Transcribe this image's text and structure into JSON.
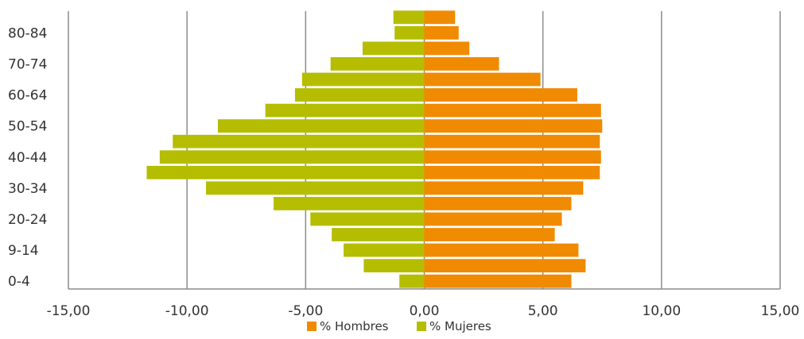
{
  "chart_data": {
    "type": "bar",
    "orientation": "horizontal",
    "categories": [
      "0-4",
      "5-8",
      "9-14",
      "15-19",
      "20-24",
      "25-29",
      "30-34",
      "35-39",
      "40-44",
      "45-49",
      "50-54",
      "55-59",
      "60-64",
      "65-69",
      "70-74",
      "75-79",
      "80-84",
      "85+"
    ],
    "visible_category_labels": [
      "0-4",
      "9-14",
      "20-24",
      "30-34",
      "40-44",
      "50-54",
      "60-64",
      "70-74",
      "80-84"
    ],
    "series": [
      {
        "name": "% Hombres",
        "color": "#F08A00",
        "values": [
          6.2,
          6.8,
          6.5,
          5.5,
          5.8,
          6.2,
          6.7,
          7.4,
          7.45,
          7.4,
          7.5,
          7.45,
          6.45,
          4.9,
          3.15,
          1.9,
          1.45,
          1.3
        ]
      },
      {
        "name": "% Mujeres",
        "color": "#B5BD00",
        "values": [
          -1.05,
          -2.55,
          -3.4,
          -3.9,
          -4.8,
          -6.35,
          -9.2,
          -11.7,
          -11.15,
          -10.6,
          -8.7,
          -6.7,
          -5.45,
          -5.15,
          -3.95,
          -2.6,
          -1.25,
          -1.3
        ]
      }
    ],
    "x_ticks": [
      "-15,00",
      "-10,00",
      "-5,00",
      "0,00",
      "5,00",
      "10,00",
      "15,00"
    ],
    "xlim": [
      -15,
      15
    ],
    "grid": "vertical",
    "legend": "bottom"
  }
}
